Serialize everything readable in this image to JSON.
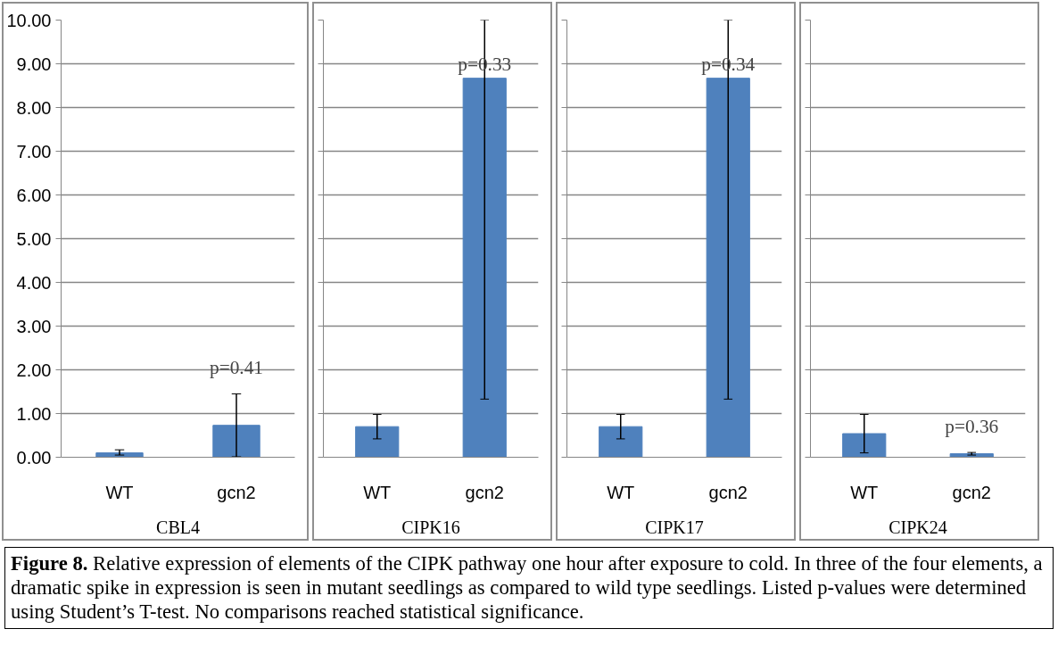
{
  "chart_data": [
    {
      "type": "bar",
      "xlabel": "CBL4",
      "categories": [
        "WT",
        "gcn2"
      ],
      "values": [
        0.1,
        0.73
      ],
      "errors": [
        [
          0.05,
          0.17
        ],
        0.72
      ],
      "color": "#4f81bd",
      "ylim": [
        0,
        10
      ],
      "yticks": [
        {
          "value": 0,
          "label": "0.00"
        },
        {
          "value": 1,
          "label": "1.00"
        },
        {
          "value": 2,
          "label": "2.00"
        },
        {
          "value": 3,
          "label": "3.00"
        },
        {
          "value": 4,
          "label": "4.00"
        },
        {
          "value": 5,
          "label": "5.00"
        },
        {
          "value": 6,
          "label": "6.00"
        },
        {
          "value": 7,
          "label": "7.00"
        },
        {
          "value": 8,
          "label": "8.00"
        },
        {
          "value": 9,
          "label": "9.00"
        },
        {
          "value": 10,
          "label": "10.00"
        }
      ],
      "grid": "y",
      "annotations": [
        "p=0.41",
        "Figure 8.  Relative expression of elements of the CIPK pathway one hour after exposure to cold. In three of the four elements, a dramatic spike in expression is seen in mutant seedlings as compared to wild type seedlings. Listed p-values were determined using Student’s T-test. No comparisons reached statistical significance."
      ]
    },
    {
      "type": "bar",
      "xlabel": "CIPK16",
      "categories": [
        "WT",
        "gcn2"
      ],
      "values": [
        0.7,
        8.67
      ],
      "errors": [
        0.28,
        [
          1.33,
          10
        ]
      ],
      "color": "#4f81bd",
      "ylim": [
        0,
        10
      ],
      "yticks": [
        0,
        1,
        2,
        3,
        4,
        5,
        6,
        7,
        8,
        9,
        10
      ],
      "grid": "y",
      "tick_labels": "x",
      "annotations": [
        "p=0.33"
      ]
    },
    {
      "type": "bar",
      "xlabel": "CIPK17",
      "categories": [
        "WT",
        "gcn2"
      ],
      "values": [
        0.7,
        8.67
      ],
      "errors": [
        0.28,
        [
          1.33,
          10
        ]
      ],
      "color": "#4f81bd",
      "ylim": [
        0,
        10
      ],
      "yticks": [
        0,
        1,
        2,
        3,
        4,
        5,
        6,
        7,
        8,
        9,
        10
      ],
      "grid": "y",
      "tick_labels": "x",
      "annotations": [
        "p=0.34"
      ]
    },
    {
      "type": "bar",
      "xlabel": "CIPK24",
      "categories": [
        "WT",
        "gcn2"
      ],
      "values": [
        0.54,
        0.08
      ],
      "errors": [
        0.44,
        0.03
      ],
      "color": "#4f81bd",
      "ylim": [
        0,
        10
      ],
      "yticks": [
        0,
        1,
        2,
        3,
        4,
        5,
        6,
        7,
        8,
        9,
        10
      ],
      "grid": "y",
      "tick_labels": "x",
      "annotations": [
        "p=0.36"
      ]
    }
  ]
}
